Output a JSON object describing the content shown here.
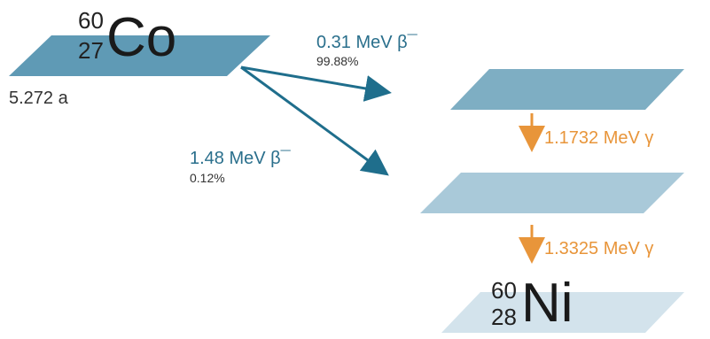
{
  "parent": {
    "mass_number": "60",
    "atomic_number": "27",
    "symbol": "Co",
    "half_life": "5.272 a"
  },
  "daughter": {
    "mass_number": "60",
    "atomic_number": "28",
    "symbol": "Ni"
  },
  "beta_decays": [
    {
      "energy": "0.31 MeV β¯",
      "probability": "99.88%"
    },
    {
      "energy": "1.48 MeV β¯",
      "probability": "0.12%"
    }
  ],
  "gamma_transitions": [
    {
      "energy": "1.1732 MeV γ"
    },
    {
      "energy": "1.3325 MeV γ"
    }
  ],
  "colors": {
    "beta_arrow": "#1f6e8c",
    "gamma_arrow": "#e8953a",
    "level_upper": "#7eaec3",
    "level_middle": "#a9c9d9",
    "level_ground": "#d3e3ec",
    "parent_level": "#5f9ab5"
  }
}
